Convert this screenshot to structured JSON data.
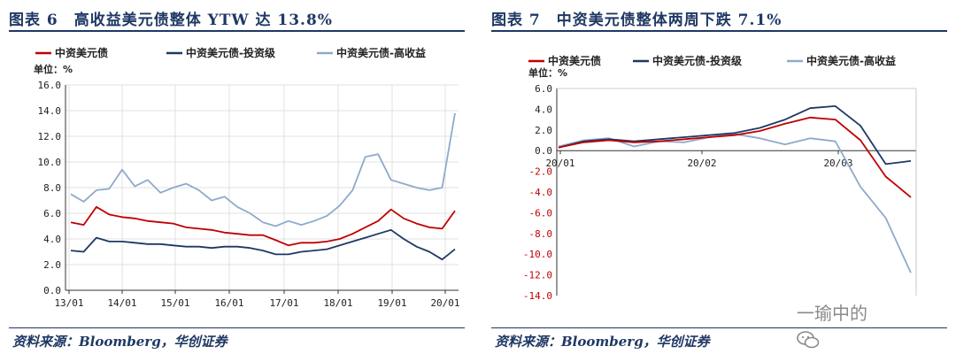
{
  "left": {
    "title": "图表 6　高收益美元债整体 YTW 达 13.8%",
    "source": "资料来源：Bloomberg，华创证券",
    "chart_data": {
      "type": "line",
      "ylabel": "单位：%",
      "ylim": [
        0,
        16
      ],
      "yticks": [
        "0.0",
        "2.0",
        "4.0",
        "6.0",
        "8.0",
        "10.0",
        "12.0",
        "14.0",
        "16.0"
      ],
      "xticks": [
        "13/01",
        "14/01",
        "15/01",
        "16/01",
        "17/01",
        "18/01",
        "19/01",
        "20/01"
      ],
      "grid": true,
      "legend": "top",
      "x": [
        "2013-01",
        "2013-04",
        "2013-07",
        "2013-10",
        "2014-01",
        "2014-04",
        "2014-07",
        "2014-10",
        "2015-01",
        "2015-04",
        "2015-07",
        "2015-10",
        "2016-01",
        "2016-04",
        "2016-07",
        "2016-10",
        "2017-01",
        "2017-04",
        "2017-07",
        "2017-10",
        "2018-01",
        "2018-04",
        "2018-07",
        "2018-10",
        "2019-01",
        "2019-04",
        "2019-07",
        "2019-10",
        "2020-01",
        "2020-02",
        "2020-03"
      ],
      "series": [
        {
          "name": "中资美元债",
          "color": "#c00000",
          "values": [
            5.3,
            5.1,
            6.5,
            5.9,
            5.7,
            5.6,
            5.4,
            5.3,
            5.2,
            4.9,
            4.8,
            4.7,
            4.5,
            4.4,
            4.3,
            4.3,
            3.9,
            3.5,
            3.7,
            3.7,
            3.8,
            4.0,
            4.4,
            4.9,
            5.4,
            6.3,
            5.6,
            5.2,
            4.9,
            4.8,
            6.2
          ]
        },
        {
          "name": "中资美元债-投资级",
          "color": "#1f3864",
          "values": [
            3.1,
            3.0,
            4.1,
            3.8,
            3.8,
            3.7,
            3.6,
            3.6,
            3.5,
            3.4,
            3.4,
            3.3,
            3.4,
            3.4,
            3.3,
            3.1,
            2.8,
            2.8,
            3.0,
            3.1,
            3.2,
            3.5,
            3.8,
            4.1,
            4.4,
            4.7,
            4.0,
            3.4,
            3.0,
            2.4,
            3.2
          ]
        },
        {
          "name": "中资美元债-高收益",
          "color": "#8eaacb",
          "values": [
            7.5,
            6.9,
            7.8,
            7.9,
            9.4,
            8.1,
            8.6,
            7.6,
            8.0,
            8.3,
            7.8,
            7.0,
            7.3,
            6.5,
            6.0,
            5.3,
            5.0,
            5.4,
            5.1,
            5.4,
            5.8,
            6.6,
            7.8,
            10.4,
            10.6,
            8.6,
            8.3,
            8.0,
            7.8,
            8.0,
            13.8
          ]
        }
      ]
    }
  },
  "right": {
    "title": "图表 7　中资美元债整体两周下跌 7.1%",
    "source": "资料来源：Bloomberg，华创证券",
    "chart_data": {
      "type": "line",
      "ylabel": "单位：%",
      "ylim": [
        -14,
        6
      ],
      "yticks": [
        "6.0",
        "4.0",
        "2.0",
        "0.0",
        "-2.0",
        "-4.0",
        "-6.0",
        "-8.0",
        "-10.0",
        "-12.0",
        "-14.0"
      ],
      "xticks": [
        "20/01",
        "20/02",
        "20/03"
      ],
      "grid": false,
      "legend": "top",
      "x": [
        "01-02",
        "01-09",
        "01-16",
        "01-23",
        "01-30",
        "02-06",
        "02-13",
        "02-20",
        "02-27",
        "03-05",
        "03-09",
        "03-12",
        "03-16",
        "03-19",
        "03-23"
      ],
      "series": [
        {
          "name": "中资美元债",
          "color": "#c00000",
          "values": [
            0.3,
            0.8,
            1.0,
            0.8,
            0.9,
            1.1,
            1.3,
            1.5,
            1.9,
            2.6,
            3.2,
            3.0,
            1.0,
            -2.5,
            -4.5
          ]
        },
        {
          "name": "中资美元债-投资级",
          "color": "#1f3864",
          "values": [
            0.3,
            0.9,
            1.1,
            0.9,
            1.1,
            1.3,
            1.5,
            1.7,
            2.2,
            3.0,
            4.1,
            4.3,
            2.4,
            -1.3,
            -1.0
          ]
        },
        {
          "name": "中资美元债-高收益",
          "color": "#8eaacb",
          "values": [
            0.4,
            1.0,
            1.2,
            0.4,
            0.9,
            0.8,
            1.3,
            1.6,
            1.2,
            0.6,
            1.2,
            0.9,
            -3.5,
            -6.5,
            -11.8
          ]
        }
      ]
    }
  },
  "watermark": {
    "text": "一瑜中的"
  }
}
